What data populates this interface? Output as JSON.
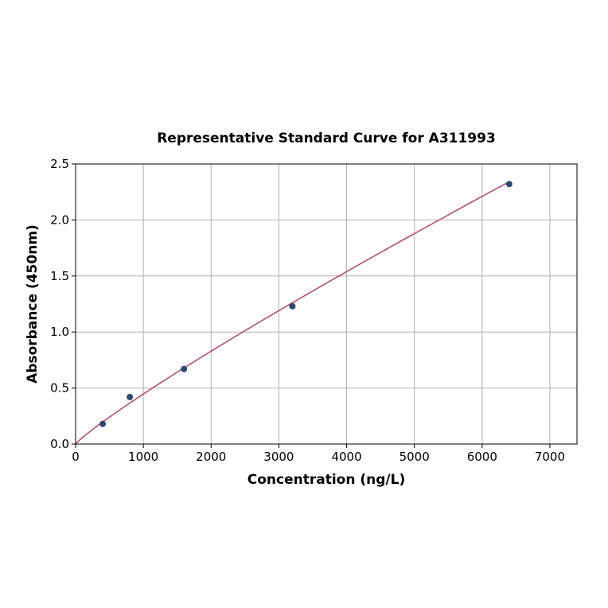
{
  "chart_data": {
    "type": "scatter",
    "title": "Representative Standard Curve for A311993",
    "xlabel": "Concentration (ng/L)",
    "ylabel": "Absorbance (450nm)",
    "xlim": [
      0,
      7400
    ],
    "ylim": [
      0,
      2.5
    ],
    "xticks": [
      0,
      1000,
      2000,
      3000,
      4000,
      5000,
      6000,
      7000
    ],
    "yticks": [
      0.0,
      0.5,
      1.0,
      1.5,
      2.0,
      2.5
    ],
    "ytick_labels": [
      "0.0",
      "0.5",
      "1.0",
      "1.5",
      "2.0",
      "2.5"
    ],
    "grid": true,
    "points": {
      "x": [
        400,
        800,
        1600,
        3200,
        6400
      ],
      "y": [
        0.18,
        0.42,
        0.67,
        1.23,
        2.32
      ]
    },
    "fit_curve": {
      "x_range": [
        0,
        6400
      ],
      "description": "fitted standard curve"
    },
    "colors": {
      "points": "#2e4a6e",
      "curve": "#b5506e",
      "grid": "#b0b0b0"
    }
  }
}
